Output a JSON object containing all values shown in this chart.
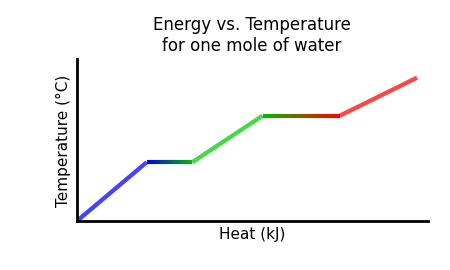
{
  "title_line1": "Energy vs. Temperature",
  "title_line2": "for one mole of water",
  "xlabel": "Heat (kJ)",
  "ylabel": "Temperature (°C)",
  "background_color": "#ffffff",
  "title_fontsize": 12,
  "label_fontsize": 11,
  "segments": [
    {
      "x": [
        0.0,
        0.2
      ],
      "y": [
        0.0,
        0.42
      ],
      "colors": [
        "#0000ff",
        "#0000ff"
      ]
    },
    {
      "x": [
        0.2,
        0.33
      ],
      "y": [
        0.42,
        0.42
      ],
      "colors": [
        "#0000dd",
        "#00bb00"
      ]
    },
    {
      "x": [
        0.33,
        0.53
      ],
      "y": [
        0.42,
        0.75
      ],
      "colors": [
        "#00cc00",
        "#00cc00"
      ]
    },
    {
      "x": [
        0.53,
        0.75
      ],
      "y": [
        0.75,
        0.75
      ],
      "colors": [
        "#00bb00",
        "#ff0000"
      ]
    },
    {
      "x": [
        0.75,
        0.97
      ],
      "y": [
        0.75,
        1.02
      ],
      "colors": [
        "#ff0000",
        "#ff0000"
      ]
    }
  ],
  "xlim": [
    0,
    1
  ],
  "ylim": [
    0,
    1.15
  ],
  "linewidth": 3.0
}
